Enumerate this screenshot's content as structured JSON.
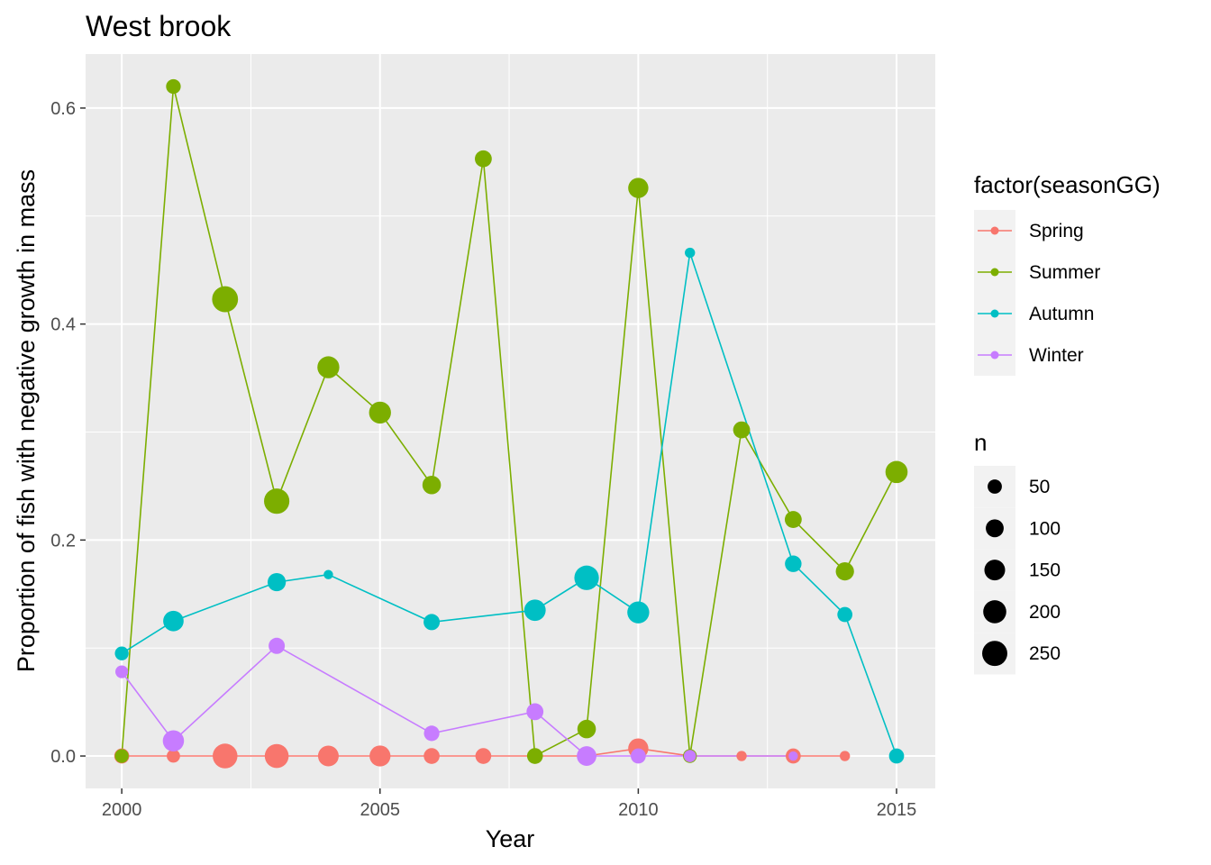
{
  "chart_data": {
    "type": "line",
    "title": "West brook",
    "xlabel": "Year",
    "ylabel": "Proportion of fish with negative growth in mass",
    "xlim": [
      1999.3,
      2015.75
    ],
    "ylim": [
      -0.03,
      0.65
    ],
    "x_ticks": [
      2000,
      2005,
      2010,
      2015
    ],
    "x_tick_labels": [
      "2000",
      "2005",
      "2010",
      "2015"
    ],
    "y_ticks": [
      0.0,
      0.2,
      0.4,
      0.6
    ],
    "y_tick_labels": [
      "0.0",
      "0.2",
      "0.4",
      "0.6"
    ],
    "grid": true,
    "panel_background": "#ebebeb",
    "legend_position": "right",
    "color_legend": {
      "title": "factor(seasonGG)",
      "entries": [
        "Spring",
        "Summer",
        "Autumn",
        "Winter"
      ]
    },
    "size_legend": {
      "title": "n",
      "values": [
        50,
        100,
        150,
        200,
        250
      ],
      "labels": [
        "50",
        "100",
        "150",
        "200",
        "250"
      ]
    },
    "series": [
      {
        "name": "Spring",
        "color": "#F8766D",
        "points": [
          {
            "x": 2000,
            "y": 0.0,
            "n": 60
          },
          {
            "x": 2001,
            "y": 0.0,
            "n": 40
          },
          {
            "x": 2002,
            "y": 0.0,
            "n": 240
          },
          {
            "x": 2003,
            "y": 0.0,
            "n": 220
          },
          {
            "x": 2004,
            "y": 0.0,
            "n": 150
          },
          {
            "x": 2005,
            "y": 0.0,
            "n": 155
          },
          {
            "x": 2006,
            "y": 0.0,
            "n": 70
          },
          {
            "x": 2007,
            "y": 0.0,
            "n": 70
          },
          {
            "x": 2008,
            "y": 0.0,
            "n": 60
          },
          {
            "x": 2009,
            "y": 0.0,
            "n": 45
          },
          {
            "x": 2010,
            "y": 0.007,
            "n": 140
          },
          {
            "x": 2011,
            "y": 0.0,
            "n": 40
          },
          {
            "x": 2012,
            "y": 0.0,
            "n": 15
          },
          {
            "x": 2013,
            "y": 0.0,
            "n": 60
          },
          {
            "x": 2014,
            "y": 0.0,
            "n": 15
          }
        ]
      },
      {
        "name": "Summer",
        "color": "#7CAE00",
        "points": [
          {
            "x": 2000,
            "y": 0.0,
            "n": 45
          },
          {
            "x": 2001,
            "y": 0.62,
            "n": 55
          },
          {
            "x": 2002,
            "y": 0.423,
            "n": 270
          },
          {
            "x": 2003,
            "y": 0.236,
            "n": 255
          },
          {
            "x": 2004,
            "y": 0.36,
            "n": 175
          },
          {
            "x": 2005,
            "y": 0.318,
            "n": 175
          },
          {
            "x": 2006,
            "y": 0.251,
            "n": 110
          },
          {
            "x": 2007,
            "y": 0.553,
            "n": 85
          },
          {
            "x": 2008,
            "y": 0.0,
            "n": 70
          },
          {
            "x": 2009,
            "y": 0.025,
            "n": 110
          },
          {
            "x": 2010,
            "y": 0.526,
            "n": 140
          },
          {
            "x": 2011,
            "y": 0.0,
            "n": 45
          },
          {
            "x": 2012,
            "y": 0.302,
            "n": 85
          },
          {
            "x": 2013,
            "y": 0.219,
            "n": 85
          },
          {
            "x": 2014,
            "y": 0.171,
            "n": 105
          },
          {
            "x": 2015,
            "y": 0.263,
            "n": 180
          }
        ]
      },
      {
        "name": "Autumn",
        "color": "#00BFC4",
        "points": [
          {
            "x": 2000,
            "y": 0.095,
            "n": 45
          },
          {
            "x": 2001,
            "y": 0.125,
            "n": 145
          },
          {
            "x": 2003,
            "y": 0.161,
            "n": 105
          },
          {
            "x": 2004,
            "y": 0.168,
            "n": 10
          },
          {
            "x": 2006,
            "y": 0.124,
            "n": 75
          },
          {
            "x": 2008,
            "y": 0.135,
            "n": 165
          },
          {
            "x": 2009,
            "y": 0.165,
            "n": 235
          },
          {
            "x": 2010,
            "y": 0.133,
            "n": 175
          },
          {
            "x": 2011,
            "y": 0.466,
            "n": 15
          },
          {
            "x": 2013,
            "y": 0.178,
            "n": 80
          },
          {
            "x": 2014,
            "y": 0.131,
            "n": 60
          },
          {
            "x": 2015,
            "y": 0.0,
            "n": 60
          }
        ]
      },
      {
        "name": "Winter",
        "color": "#C77CFF",
        "points": [
          {
            "x": 2000,
            "y": 0.078,
            "n": 35
          },
          {
            "x": 2001,
            "y": 0.014,
            "n": 160
          },
          {
            "x": 2003,
            "y": 0.102,
            "n": 75
          },
          {
            "x": 2006,
            "y": 0.021,
            "n": 65
          },
          {
            "x": 2008,
            "y": 0.041,
            "n": 85
          },
          {
            "x": 2009,
            "y": 0.0,
            "n": 130
          },
          {
            "x": 2010,
            "y": 0.0,
            "n": 60
          },
          {
            "x": 2011,
            "y": 0.0,
            "n": 30
          },
          {
            "x": 2013,
            "y": 0.0,
            "n": 10
          }
        ]
      }
    ]
  }
}
